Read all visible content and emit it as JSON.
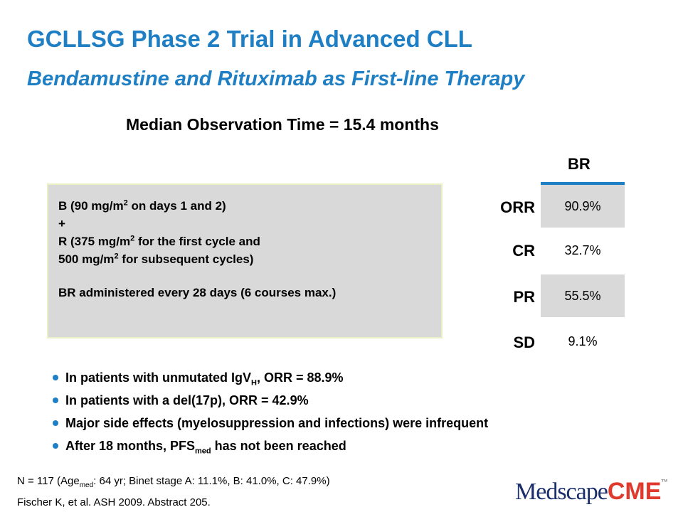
{
  "slide": {
    "title": "GCLLSG Phase 2 Trial in Advanced CLL",
    "subtitle": "Bendamustine and Rituximab as First-line Therapy",
    "median_observation": "Median Observation Time = 15.4 months"
  },
  "regimen": {
    "b_line": {
      "pre": "B (90 mg/m",
      "sup": "2",
      "post": " on days 1 and 2)"
    },
    "plus": "+",
    "r_line1": {
      "pre": "R (375 mg/m",
      "sup": "2",
      "post": " for the first cycle and"
    },
    "r_line2": {
      "pre": "500 mg/m",
      "sup": "2",
      "post": " for subsequent cycles)"
    },
    "schedule": "BR administered every 28 days (6 courses max.)"
  },
  "response_table": {
    "column_header": "BR",
    "rows": [
      {
        "label": "ORR",
        "value": "90.9%"
      },
      {
        "label": "CR",
        "value": "32.7%"
      },
      {
        "label": "PR",
        "value": "55.5%"
      },
      {
        "label": "SD",
        "value": "9.1%"
      }
    ]
  },
  "bullets": [
    {
      "pre": "In patients with unmutated IgV",
      "sub": "H",
      "post": ", ORR = 88.9%"
    },
    {
      "pre": "In patients with a del(17p), ORR = 42.9%",
      "sub": "",
      "post": ""
    },
    {
      "pre": "Major side effects (myelosuppression and infections) were infrequent",
      "sub": "",
      "post": ""
    },
    {
      "pre": "After 18 months, PFS",
      "sub": "med",
      "post": " has not been reached"
    }
  ],
  "footnote": {
    "line1": {
      "pre": "N = 117 (Age",
      "sub": "med",
      "post": ": 64 yr; Binet stage A: 11.1%, B: 41.0%, C: 47.9%)"
    },
    "line2": "Fischer K, et al. ASH 2009. Abstract 205."
  },
  "logo": {
    "part1": "Medscape",
    "part2": "CME",
    "tm": "™"
  },
  "colors": {
    "accent_blue": "#1f7fc4",
    "box_gray": "#d9d9d9",
    "logo_red": "#e03a2f",
    "logo_navy": "#1a2e6b"
  }
}
